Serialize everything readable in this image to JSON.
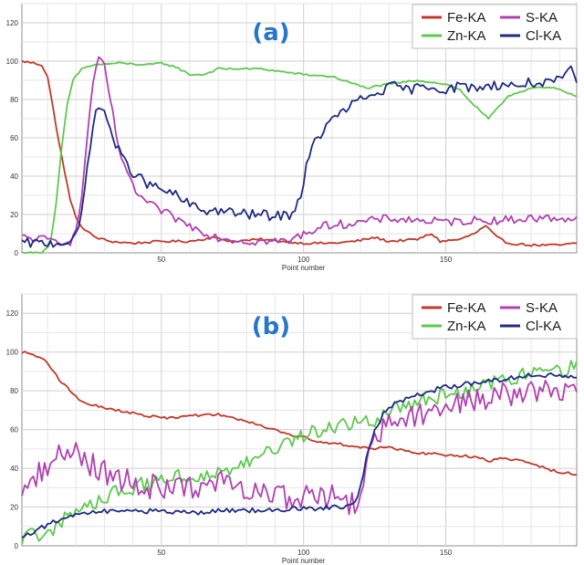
{
  "colors": {
    "fe": "#c0392b",
    "zn": "#5ec84f",
    "s": "#b040b0",
    "cl": "#1f2a80",
    "label": "#2677c5"
  },
  "chart_data": [
    {
      "type": "line",
      "panel_label": "(a)",
      "xlabel": "Point number",
      "xlim": [
        1,
        196
      ],
      "ylim": [
        0,
        130
      ],
      "xticks": [
        50,
        100,
        150
      ],
      "yticks": [
        0,
        20,
        40,
        60,
        80,
        100,
        120
      ],
      "legend_position": "top-right",
      "series": [
        {
          "name": "Fe-KA",
          "color_key": "fe",
          "noise": 0.6,
          "points": [
            [
              1,
              100
            ],
            [
              5,
              99
            ],
            [
              8,
              98
            ],
            [
              10,
              92
            ],
            [
              12,
              75
            ],
            [
              14,
              58
            ],
            [
              16,
              42
            ],
            [
              18,
              28
            ],
            [
              20,
              18
            ],
            [
              23,
              12
            ],
            [
              27,
              8
            ],
            [
              32,
              6
            ],
            [
              40,
              5
            ],
            [
              50,
              6
            ],
            [
              60,
              6
            ],
            [
              68,
              8
            ],
            [
              75,
              6
            ],
            [
              85,
              7
            ],
            [
              100,
              5
            ],
            [
              110,
              5
            ],
            [
              118,
              6
            ],
            [
              125,
              8
            ],
            [
              130,
              6
            ],
            [
              140,
              7
            ],
            [
              145,
              10
            ],
            [
              148,
              6
            ],
            [
              155,
              7
            ],
            [
              160,
              10
            ],
            [
              164,
              14
            ],
            [
              168,
              8
            ],
            [
              172,
              5
            ],
            [
              180,
              4
            ],
            [
              190,
              4
            ],
            [
              196,
              5
            ]
          ]
        },
        {
          "name": "Zn-KA",
          "color_key": "zn",
          "noise": 0.5,
          "points": [
            [
              1,
              0
            ],
            [
              8,
              0
            ],
            [
              11,
              5
            ],
            [
              13,
              25
            ],
            [
              15,
              55
            ],
            [
              17,
              78
            ],
            [
              19,
              90
            ],
            [
              22,
              96
            ],
            [
              26,
              98
            ],
            [
              35,
              99
            ],
            [
              45,
              98
            ],
            [
              50,
              99
            ],
            [
              55,
              97
            ],
            [
              60,
              93
            ],
            [
              65,
              93
            ],
            [
              70,
              96
            ],
            [
              75,
              96
            ],
            [
              85,
              96
            ],
            [
              95,
              94
            ],
            [
              100,
              93
            ],
            [
              110,
              92
            ],
            [
              118,
              88
            ],
            [
              122,
              86
            ],
            [
              130,
              88
            ],
            [
              140,
              90
            ],
            [
              150,
              88
            ],
            [
              155,
              85
            ],
            [
              158,
              80
            ],
            [
              162,
              74
            ],
            [
              165,
              70
            ],
            [
              168,
              75
            ],
            [
              172,
              82
            ],
            [
              180,
              86
            ],
            [
              188,
              86
            ],
            [
              196,
              82
            ]
          ]
        },
        {
          "name": "S-KA",
          "color_key": "s",
          "noise": 2.2,
          "points": [
            [
              1,
              8
            ],
            [
              8,
              7
            ],
            [
              14,
              6
            ],
            [
              18,
              6
            ],
            [
              20,
              10
            ],
            [
              22,
              30
            ],
            [
              24,
              60
            ],
            [
              26,
              90
            ],
            [
              28,
              100
            ],
            [
              30,
              98
            ],
            [
              32,
              80
            ],
            [
              35,
              55
            ],
            [
              38,
              40
            ],
            [
              42,
              30
            ],
            [
              46,
              25
            ],
            [
              50,
              22
            ],
            [
              55,
              18
            ],
            [
              60,
              14
            ],
            [
              65,
              11
            ],
            [
              70,
              8
            ],
            [
              75,
              7
            ],
            [
              80,
              6
            ],
            [
              90,
              6
            ],
            [
              95,
              6
            ],
            [
              100,
              10
            ],
            [
              105,
              13
            ],
            [
              110,
              15
            ],
            [
              115,
              15
            ],
            [
              120,
              16
            ],
            [
              125,
              17
            ],
            [
              130,
              18
            ],
            [
              140,
              17
            ],
            [
              150,
              16
            ],
            [
              160,
              17
            ],
            [
              170,
              17
            ],
            [
              180,
              18
            ],
            [
              190,
              18
            ],
            [
              196,
              18
            ]
          ]
        },
        {
          "name": "Cl-KA",
          "color_key": "cl",
          "noise": 2.6,
          "points": [
            [
              1,
              5
            ],
            [
              10,
              5
            ],
            [
              18,
              6
            ],
            [
              20,
              8
            ],
            [
              22,
              20
            ],
            [
              24,
              45
            ],
            [
              26,
              68
            ],
            [
              28,
              76
            ],
            [
              30,
              74
            ],
            [
              33,
              60
            ],
            [
              36,
              50
            ],
            [
              40,
              42
            ],
            [
              45,
              36
            ],
            [
              50,
              33
            ],
            [
              55,
              30
            ],
            [
              60,
              25
            ],
            [
              65,
              22
            ],
            [
              70,
              22
            ],
            [
              80,
              20
            ],
            [
              85,
              20
            ],
            [
              90,
              19
            ],
            [
              95,
              20
            ],
            [
              97,
              23
            ],
            [
              99,
              30
            ],
            [
              101,
              45
            ],
            [
              104,
              58
            ],
            [
              108,
              66
            ],
            [
              112,
              72
            ],
            [
              116,
              76
            ],
            [
              120,
              80
            ],
            [
              124,
              82
            ],
            [
              128,
              85
            ],
            [
              132,
              87
            ],
            [
              136,
              85
            ],
            [
              140,
              86
            ],
            [
              145,
              87
            ],
            [
              150,
              85
            ],
            [
              155,
              87
            ],
            [
              160,
              86
            ],
            [
              165,
              87
            ],
            [
              170,
              88
            ],
            [
              175,
              87
            ],
            [
              180,
              89
            ],
            [
              185,
              88
            ],
            [
              190,
              90
            ],
            [
              194,
              95
            ],
            [
              196,
              90
            ]
          ]
        }
      ]
    },
    {
      "type": "line",
      "panel_label": "(b)",
      "xlabel": "Point number",
      "xlim": [
        1,
        196
      ],
      "ylim": [
        0,
        130
      ],
      "xticks": [
        50,
        100,
        150
      ],
      "yticks": [
        0,
        20,
        40,
        60,
        80,
        100,
        120
      ],
      "legend_position": "top-right",
      "series": [
        {
          "name": "Fe-KA",
          "color_key": "fe",
          "noise": 0.7,
          "points": [
            [
              1,
              100
            ],
            [
              5,
              99
            ],
            [
              8,
              97
            ],
            [
              11,
              92
            ],
            [
              14,
              86
            ],
            [
              18,
              80
            ],
            [
              22,
              74
            ],
            [
              28,
              72
            ],
            [
              35,
              70
            ],
            [
              45,
              67
            ],
            [
              50,
              66
            ],
            [
              60,
              67
            ],
            [
              70,
              68
            ],
            [
              75,
              66
            ],
            [
              80,
              64
            ],
            [
              90,
              60
            ],
            [
              95,
              57
            ],
            [
              100,
              56
            ],
            [
              105,
              54
            ],
            [
              110,
              53
            ],
            [
              115,
              52
            ],
            [
              120,
              51
            ],
            [
              125,
              50
            ],
            [
              130,
              51
            ],
            [
              135,
              49
            ],
            [
              140,
              48
            ],
            [
              150,
              47
            ],
            [
              160,
              46
            ],
            [
              165,
              44
            ],
            [
              170,
              45
            ],
            [
              180,
              43
            ],
            [
              185,
              40
            ],
            [
              190,
              38
            ],
            [
              196,
              37
            ]
          ]
        },
        {
          "name": "Zn-KA",
          "color_key": "zn",
          "noise": 4.5,
          "points": [
            [
              1,
              4
            ],
            [
              5,
              5
            ],
            [
              10,
              8
            ],
            [
              15,
              12
            ],
            [
              20,
              17
            ],
            [
              25,
              22
            ],
            [
              30,
              26
            ],
            [
              40,
              30
            ],
            [
              50,
              33
            ],
            [
              60,
              36
            ],
            [
              70,
              38
            ],
            [
              80,
              42
            ],
            [
              90,
              50
            ],
            [
              100,
              56
            ],
            [
              110,
              62
            ],
            [
              118,
              64
            ],
            [
              125,
              66
            ],
            [
              130,
              70
            ],
            [
              140,
              74
            ],
            [
              150,
              78
            ],
            [
              160,
              82
            ],
            [
              170,
              86
            ],
            [
              180,
              88
            ],
            [
              190,
              90
            ],
            [
              196,
              92
            ]
          ]
        },
        {
          "name": "S-KA",
          "color_key": "s",
          "noise": 6.5,
          "points": [
            [
              1,
              30
            ],
            [
              5,
              35
            ],
            [
              10,
              42
            ],
            [
              15,
              48
            ],
            [
              20,
              50
            ],
            [
              25,
              42
            ],
            [
              30,
              38
            ],
            [
              35,
              35
            ],
            [
              40,
              32
            ],
            [
              50,
              30
            ],
            [
              60,
              30
            ],
            [
              70,
              32
            ],
            [
              75,
              33
            ],
            [
              80,
              28
            ],
            [
              90,
              26
            ],
            [
              100,
              25
            ],
            [
              110,
              25
            ],
            [
              115,
              24
            ],
            [
              118,
              20
            ],
            [
              120,
              25
            ],
            [
              122,
              40
            ],
            [
              125,
              55
            ],
            [
              128,
              62
            ],
            [
              130,
              65
            ],
            [
              140,
              68
            ],
            [
              150,
              72
            ],
            [
              160,
              76
            ],
            [
              170,
              78
            ],
            [
              180,
              80
            ],
            [
              190,
              80
            ],
            [
              196,
              80
            ]
          ]
        },
        {
          "name": "Cl-KA",
          "color_key": "cl",
          "noise": 1.3,
          "points": [
            [
              1,
              5
            ],
            [
              5,
              7
            ],
            [
              10,
              11
            ],
            [
              15,
              14
            ],
            [
              20,
              16
            ],
            [
              25,
              17
            ],
            [
              30,
              18
            ],
            [
              40,
              18
            ],
            [
              50,
              18
            ],
            [
              60,
              17
            ],
            [
              70,
              18
            ],
            [
              80,
              18
            ],
            [
              90,
              19
            ],
            [
              100,
              19
            ],
            [
              110,
              20
            ],
            [
              116,
              20
            ],
            [
              118,
              22
            ],
            [
              120,
              30
            ],
            [
              122,
              45
            ],
            [
              125,
              60
            ],
            [
              128,
              68
            ],
            [
              130,
              72
            ],
            [
              140,
              78
            ],
            [
              150,
              82
            ],
            [
              160,
              84
            ],
            [
              170,
              86
            ],
            [
              180,
              88
            ],
            [
              190,
              88
            ],
            [
              196,
              88
            ]
          ]
        }
      ]
    }
  ]
}
